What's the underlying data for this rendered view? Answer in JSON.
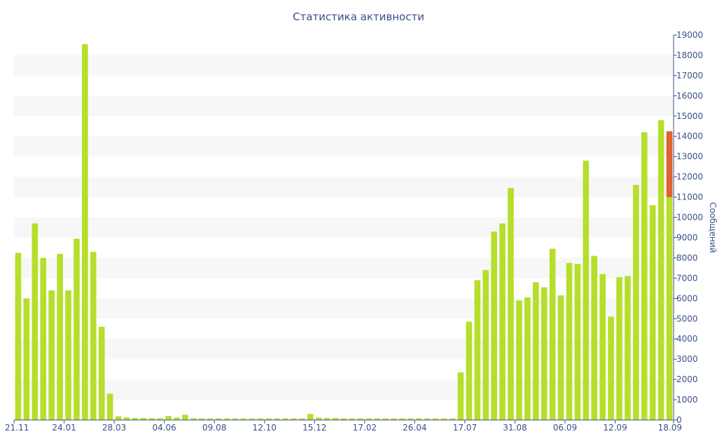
{
  "chart_data": {
    "type": "bar",
    "title": "Статистика активности",
    "xlabel": "",
    "ylabel": "Сообщений",
    "ylim": [
      0,
      19000
    ],
    "y_ticks": [
      "0",
      "1000",
      "2000",
      "3000",
      "4000",
      "5000",
      "6000",
      "7000",
      "8000",
      "9000",
      "10000",
      "11000",
      "12000",
      "13000",
      "14000",
      "15000",
      "16000",
      "17000",
      "18000",
      "19000"
    ],
    "x_tick_labels": [
      {
        "label": "21.11",
        "bar_index": 0
      },
      {
        "label": "24.01",
        "bar_index": 6
      },
      {
        "label": "28.03",
        "bar_index": 12
      },
      {
        "label": "04.06",
        "bar_index": 18
      },
      {
        "label": "09.08",
        "bar_index": 24
      },
      {
        "label": "12.10",
        "bar_index": 30
      },
      {
        "label": "15.12",
        "bar_index": 36
      },
      {
        "label": "17.02",
        "bar_index": 42
      },
      {
        "label": "26.04",
        "bar_index": 48
      },
      {
        "label": "17.07",
        "bar_index": 54
      },
      {
        "label": "31.08",
        "bar_index": 60
      },
      {
        "label": "06.09",
        "bar_index": 66
      },
      {
        "label": "12.09",
        "bar_index": 72
      },
      {
        "label": "18.09",
        "bar_index": 78
      }
    ],
    "grid": "alternating horizontal bands",
    "colors": {
      "bar": "#b5df2a",
      "highlight": "#e0622f",
      "band": "#f7f7f7",
      "axis": "#3b4f8a"
    },
    "series": [
      {
        "values": [
          8250,
          6000,
          9700,
          8000,
          6400,
          8200,
          6400,
          8950,
          18550,
          8300,
          4600,
          1300,
          180,
          130,
          100,
          100,
          90,
          90,
          200,
          120,
          260,
          90,
          80,
          80,
          80,
          80,
          80,
          80,
          80,
          80,
          80,
          80,
          80,
          80,
          80,
          300,
          120,
          100,
          100,
          80,
          80,
          80,
          80,
          80,
          80,
          80,
          80,
          80,
          80,
          80,
          80,
          80,
          80,
          2350,
          4850,
          6900,
          7400,
          9300,
          9700,
          11450,
          5900,
          6050,
          6800,
          6550,
          8450,
          6150,
          7750,
          7700,
          12800,
          8100,
          7200,
          5100,
          7050,
          7100,
          11600,
          14200,
          10600,
          14800,
          11000
        ],
        "highlight_last": {
          "base": 11000,
          "top": 14250
        }
      }
    ]
  }
}
